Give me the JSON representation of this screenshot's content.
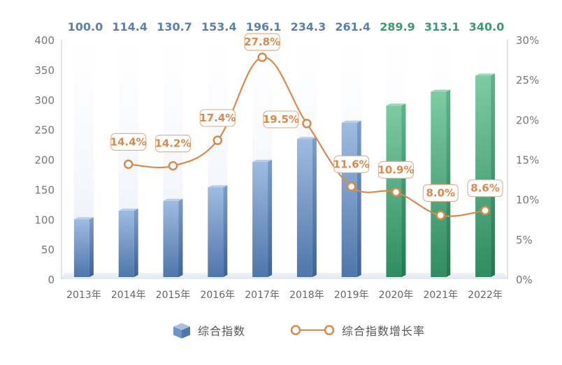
{
  "colors": {
    "blue_bar": "#6d93c4",
    "blue_value": "#5b7fae",
    "green_bar": "#48a27a",
    "green_value": "#3e9a70",
    "line": "#d9894b",
    "axis_text": "#777777"
  },
  "chart_data": {
    "type": "bar+line",
    "categories": [
      "2013年",
      "2014年",
      "2015年",
      "2016年",
      "2017年",
      "2018年",
      "2019年",
      "2020年",
      "2021年",
      "2022年"
    ],
    "series": [
      {
        "name": "综合指数",
        "type": "bar",
        "axis": "left",
        "values": [
          100.0,
          114.4,
          130.7,
          153.4,
          196.1,
          234.3,
          261.4,
          289.9,
          313.1,
          340.0
        ],
        "labels": [
          "100.0",
          "114.4",
          "130.7",
          "153.4",
          "196.1",
          "234.3",
          "261.4",
          "289.9",
          "313.1",
          "340.0"
        ]
      },
      {
        "name": "综合指数增长率",
        "type": "line",
        "axis": "right",
        "values": [
          null,
          14.4,
          14.2,
          17.4,
          27.8,
          19.5,
          11.6,
          10.9,
          8.0,
          8.6
        ],
        "labels": [
          "",
          "14.4%",
          "14.2%",
          "17.4%",
          "27.8%",
          "19.5%",
          "11.6%",
          "10.9%",
          "8.0%",
          "8.6%"
        ]
      }
    ],
    "y_left": {
      "min": 0,
      "max": 400,
      "ticks": [
        "0",
        "50",
        "100",
        "150",
        "200",
        "250",
        "300",
        "350",
        "400"
      ]
    },
    "y_right": {
      "min": 0,
      "max": 30,
      "ticks": [
        "0%",
        "5%",
        "10%",
        "15%",
        "20%",
        "25%",
        "30%"
      ]
    },
    "bar_color_split": {
      "blue_through": "2019年",
      "green_from": "2020年"
    },
    "legend": [
      {
        "label": "综合指数",
        "icon": "cube-icon"
      },
      {
        "label": "综合指数增长率",
        "icon": "line-circle-icon"
      }
    ]
  }
}
